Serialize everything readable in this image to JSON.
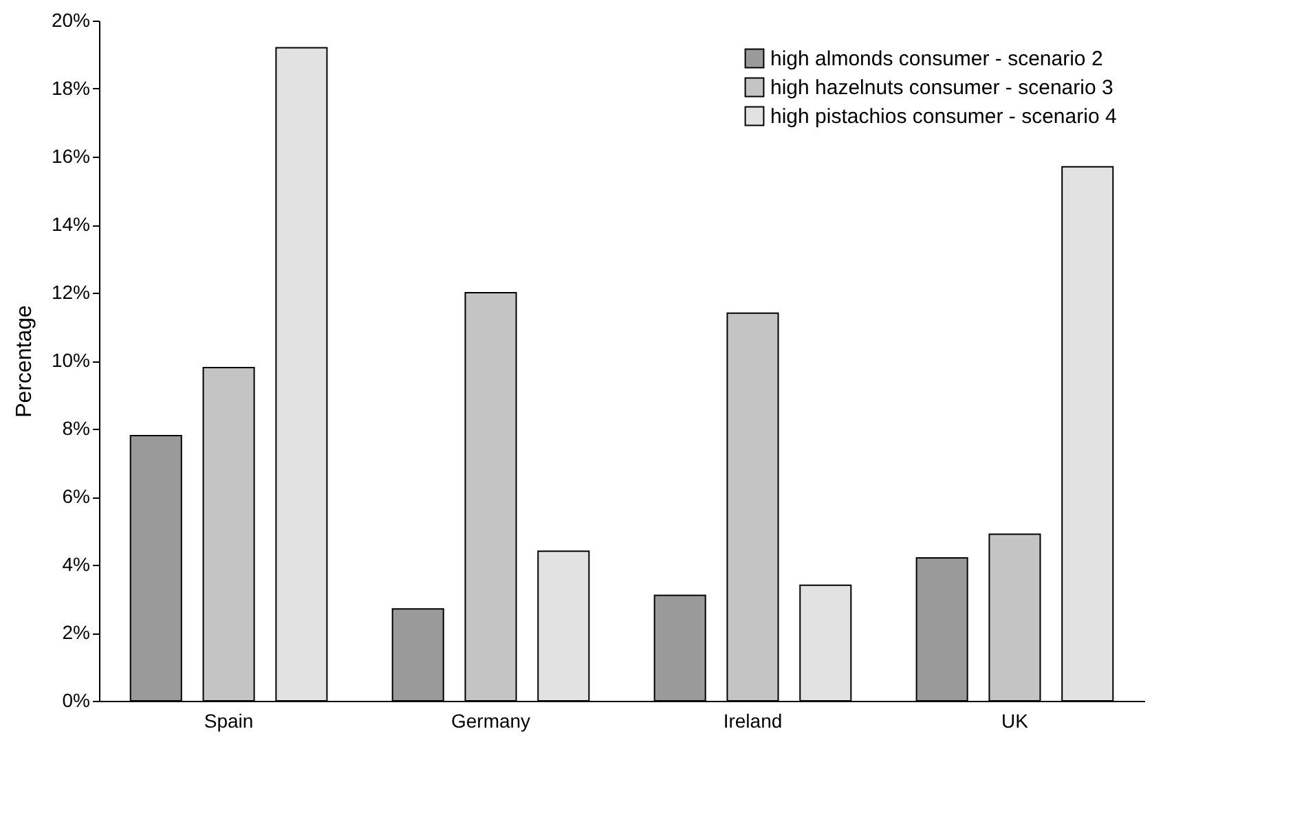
{
  "chart_data": {
    "type": "bar",
    "ylabel": "Percentage",
    "categories": [
      "Spain",
      "Germany",
      "Ireland",
      "UK"
    ],
    "series": [
      {
        "name": "high almonds consumer - scenario 2",
        "color": "#9a9a9a",
        "values": [
          7.8,
          2.7,
          3.1,
          4.2
        ]
      },
      {
        "name": "high hazelnuts consumer - scenario 3",
        "color": "#c4c4c4",
        "values": [
          9.8,
          12.0,
          11.4,
          4.9
        ]
      },
      {
        "name": "high pistachios consumer - scenario 4",
        "color": "#e2e2e2",
        "values": [
          19.2,
          4.4,
          3.4,
          15.7
        ]
      }
    ],
    "ylim": [
      0,
      20
    ],
    "yticks": [
      {
        "value": 0,
        "label": "0%"
      },
      {
        "value": 2,
        "label": "2%"
      },
      {
        "value": 4,
        "label": "4%"
      },
      {
        "value": 6,
        "label": "6%"
      },
      {
        "value": 8,
        "label": "8%"
      },
      {
        "value": 10,
        "label": "10%"
      },
      {
        "value": 12,
        "label": "12%"
      },
      {
        "value": 14,
        "label": "14%"
      },
      {
        "value": 16,
        "label": "16%"
      },
      {
        "value": 18,
        "label": "18%"
      },
      {
        "value": 20,
        "label": "20%"
      }
    ],
    "grid": false,
    "legend": "top right"
  }
}
